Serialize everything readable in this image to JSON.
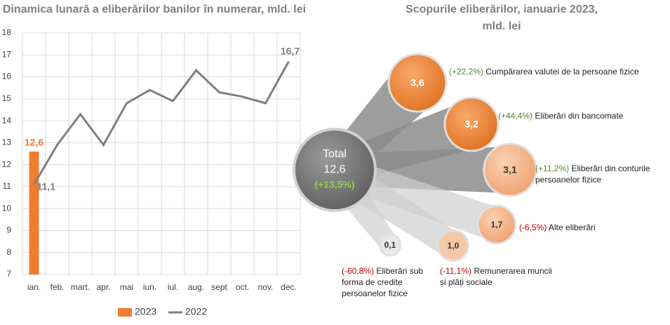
{
  "chart_data": [
    {
      "type": "bar-line",
      "title": "Dinamica lunară a eliberărilor banilor în numerar, mld. lei",
      "categories": [
        "ian.",
        "feb.",
        "mart.",
        "apr.",
        "mai",
        "iun.",
        "iul.",
        "aug.",
        "sept",
        "oct.",
        "nov.",
        "dec."
      ],
      "series": [
        {
          "name": "2023",
          "type": "bar",
          "color": "#ed7d31",
          "values": [
            12.6,
            null,
            null,
            null,
            null,
            null,
            null,
            null,
            null,
            null,
            null,
            null
          ],
          "value_labels": [
            "12,6",
            null,
            null,
            null,
            null,
            null,
            null,
            null,
            null,
            null,
            null,
            null
          ]
        },
        {
          "name": "2022",
          "type": "line",
          "color": "#7f7f7f",
          "values": [
            11.1,
            12.9,
            14.3,
            12.9,
            14.8,
            15.4,
            14.9,
            16.3,
            15.3,
            15.1,
            14.8,
            16.7
          ],
          "value_labels": [
            "11,1",
            null,
            null,
            null,
            null,
            null,
            null,
            null,
            null,
            null,
            null,
            "16,7"
          ]
        }
      ],
      "ylim": [
        7,
        18
      ],
      "yticks": [
        7,
        8,
        9,
        10,
        11,
        12,
        13,
        14,
        15,
        16,
        17,
        18
      ],
      "grid": true
    },
    {
      "type": "bubble",
      "title": "Scopurile eliberărilor, ianuarie 2023, mld. lei",
      "total": {
        "name": "Total",
        "value": 12.6,
        "value_label": "12,6",
        "change_label": "(+13,5%)"
      },
      "items": [
        {
          "name": "Cumpărarea valutei de la persoane fizice",
          "value": 3.6,
          "value_label": "3,6",
          "change_label": "(+22,2%)"
        },
        {
          "name": "Eliberări din bancomate",
          "value": 3.2,
          "value_label": "3,2",
          "change_label": "(+44,4%)"
        },
        {
          "name": "Eliberări din conturile persoanelor fizice",
          "value": 3.1,
          "value_label": "3,1",
          "change_label": "(+11,2%)"
        },
        {
          "name": "Alte eliberări",
          "value": 1.7,
          "value_label": "1,7",
          "change_label": "(-6,5%)"
        },
        {
          "name": "Remunerarea muncii și plăți sociale",
          "value": 1.0,
          "value_label": "1,0",
          "change_label": "(-11,1%)"
        },
        {
          "name": "Eliberări sub forma de credite persoanelor fizice",
          "value": 0.1,
          "value_label": "0,1",
          "change_label": "(-60,8%)"
        }
      ]
    }
  ]
}
